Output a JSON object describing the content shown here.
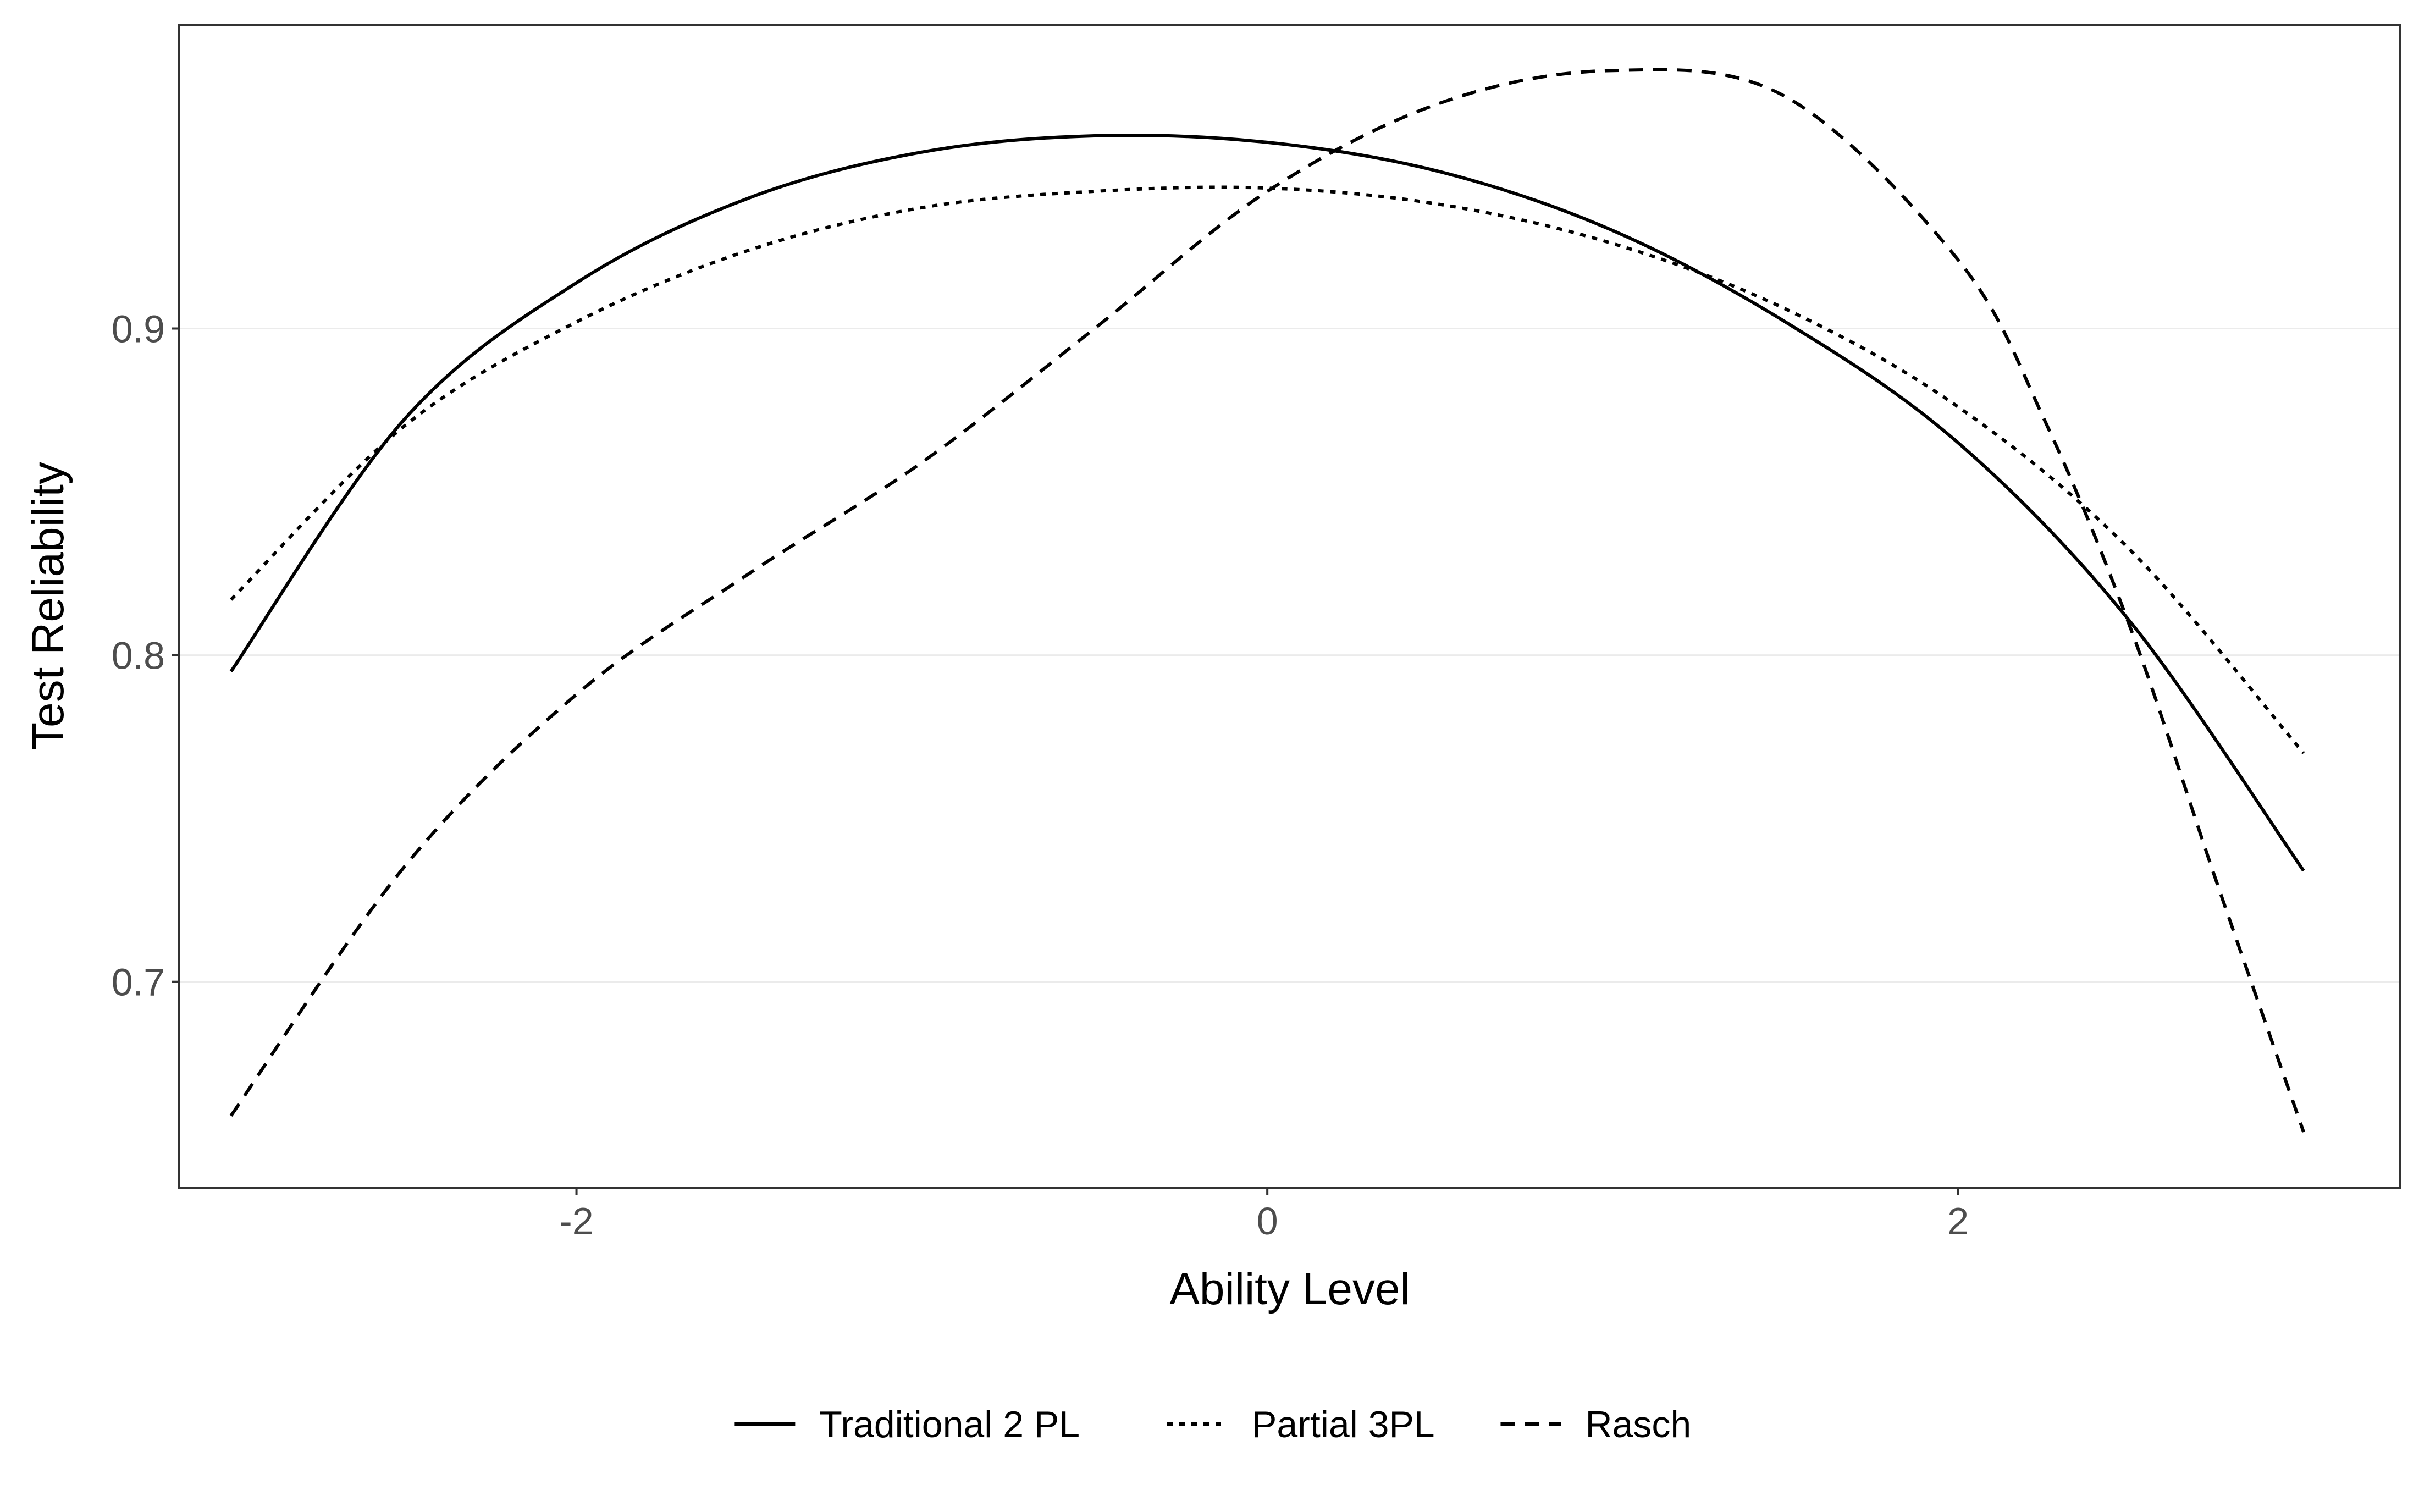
{
  "chart_data": {
    "type": "line",
    "xlabel": "Ability Level",
    "ylabel": "Test Reliability",
    "xlim": [
      -3.15,
      3.28
    ],
    "ylim": [
      0.637,
      0.993
    ],
    "x_ticks": [
      -2,
      0,
      2
    ],
    "x_tick_labels": [
      "-2",
      "0",
      "2"
    ],
    "y_ticks": [
      0.7,
      0.8,
      0.9
    ],
    "y_tick_labels": [
      "0.7",
      "0.8",
      "0.9"
    ],
    "grid": true,
    "legend_position": "bottom",
    "series": [
      {
        "name": "Traditional 2 PL",
        "linetype": "solid",
        "x": [
          -3.0,
          -2.5,
          -2.0,
          -1.5,
          -1.0,
          -0.5,
          0.0,
          0.5,
          1.0,
          1.5,
          2.0,
          2.5,
          3.0
        ],
        "y": [
          0.795,
          0.872,
          0.914,
          0.94,
          0.954,
          0.959,
          0.957,
          0.948,
          0.93,
          0.902,
          0.865,
          0.81,
          0.734
        ]
      },
      {
        "name": "Partial 3PL",
        "linetype": "dotted",
        "x": [
          -3.0,
          -2.5,
          -2.0,
          -1.5,
          -1.0,
          -0.5,
          0.0,
          0.5,
          1.0,
          1.5,
          2.0,
          2.5,
          3.0
        ],
        "y": [
          0.817,
          0.87,
          0.902,
          0.924,
          0.937,
          0.942,
          0.943,
          0.938,
          0.926,
          0.906,
          0.876,
          0.832,
          0.77
        ]
      },
      {
        "name": "Rasch",
        "linetype": "dashed",
        "x": [
          -3.0,
          -2.5,
          -2.0,
          -1.5,
          -1.0,
          -0.5,
          0.0,
          0.5,
          1.0,
          1.5,
          2.0,
          2.25,
          2.5,
          2.75,
          3.0
        ],
        "y": [
          0.659,
          0.735,
          0.788,
          0.825,
          0.859,
          0.9,
          0.942,
          0.969,
          0.979,
          0.971,
          0.921,
          0.872,
          0.808,
          0.73,
          0.654
        ]
      }
    ]
  }
}
